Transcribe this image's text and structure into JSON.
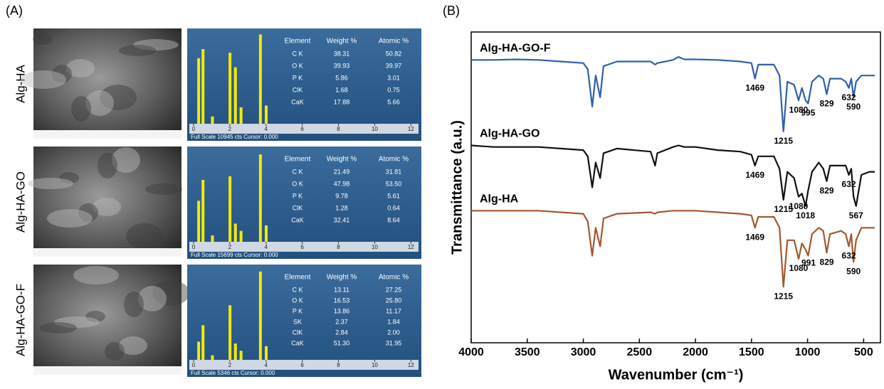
{
  "panel_labels": [
    "(A)",
    "(B)"
  ],
  "chart_data": [
    {
      "type": "bar",
      "sample": "Alg-HA",
      "x": [
        0.28,
        0.52,
        1.04,
        2.01,
        2.31,
        2.62,
        3.69,
        4.01
      ],
      "values": [
        72,
        82,
        8,
        78,
        62,
        18,
        98,
        20
      ],
      "xlim": [
        0,
        12.5
      ],
      "xticks": [
        0,
        2,
        4,
        6,
        8,
        10,
        12
      ],
      "ylim": [
        0,
        100
      ],
      "color": "#f2ea0a",
      "footer": "Full Scale 10945 cts Cursor: 0.000",
      "table": {
        "header": [
          "Element",
          "Weight %",
          "Atomic %"
        ],
        "rows": [
          [
            "C K",
            "38.31",
            "50.82"
          ],
          [
            "O K",
            "39.93",
            "39.97"
          ],
          [
            "P K",
            "5.86",
            "3.01"
          ],
          [
            "ClK",
            "1.68",
            "0.75"
          ],
          [
            "CaK",
            "17.88",
            "5.66"
          ]
        ]
      }
    },
    {
      "type": "bar",
      "sample": "Alg-HA-GO",
      "x": [
        0.28,
        0.52,
        1.04,
        2.01,
        2.31,
        2.62,
        3.69,
        4.01
      ],
      "values": [
        45,
        68,
        7,
        72,
        20,
        12,
        96,
        18
      ],
      "xlim": [
        0,
        12.5
      ],
      "xticks": [
        0,
        2,
        4,
        6,
        8,
        10,
        12
      ],
      "ylim": [
        0,
        100
      ],
      "color": "#f2ea0a",
      "footer": "Full Scale 15699 cts Cursor: 0.000",
      "table": {
        "header": [
          "Element",
          "Weight %",
          "Atomic %"
        ],
        "rows": [
          [
            "C K",
            "21.49",
            "31.81"
          ],
          [
            "O K",
            "47.98",
            "53.50"
          ],
          [
            "P K",
            "9.78",
            "5.61"
          ],
          [
            "ClK",
            "1.28",
            "0.64"
          ],
          [
            "CaK",
            "32.41",
            "8.64"
          ]
        ]
      }
    },
    {
      "type": "bar",
      "sample": "Alg-HA-GO-F",
      "x": [
        0.28,
        0.52,
        1.04,
        2.01,
        2.31,
        2.62,
        3.69,
        4.01
      ],
      "values": [
        20,
        38,
        5,
        60,
        18,
        10,
        97,
        15
      ],
      "xlim": [
        0,
        12.5
      ],
      "xticks": [
        0,
        2,
        4,
        6,
        8,
        10,
        12
      ],
      "ylim": [
        0,
        100
      ],
      "color": "#f2ea0a",
      "footer": "Full Scale 5346 cts Cursor: 0.000",
      "table": {
        "header": [
          "Element",
          "Weight %",
          "Atomic %"
        ],
        "rows": [
          [
            "C K",
            "13.11",
            "27.25"
          ],
          [
            "O K",
            "16.53",
            "25.80"
          ],
          [
            "P K",
            "13.86",
            "11.17"
          ],
          [
            "SK",
            "2.37",
            "1.84"
          ],
          [
            "ClK",
            "2.84",
            "2.00"
          ],
          [
            "CaK",
            "51.30",
            "31.95"
          ]
        ]
      }
    },
    {
      "type": "line",
      "xlabel": "Wavenumber (cm⁻¹)",
      "ylabel": "Transmittance (a.u.)",
      "xlim": [
        4000,
        350
      ],
      "ylim": [
        0,
        100
      ],
      "xticks": [
        4000,
        3500,
        3000,
        2500,
        2000,
        1500,
        1000,
        500
      ],
      "x": [
        4000,
        3800,
        3600,
        3400,
        3200,
        3000,
        2960,
        2920,
        2890,
        2850,
        2820,
        2700,
        2400,
        2360,
        2340,
        2200,
        2150,
        2100,
        2000,
        1800,
        1600,
        1500,
        1469,
        1440,
        1300,
        1250,
        1215,
        1180,
        1120,
        1080,
        1050,
        1018,
        995,
        960,
        900,
        860,
        829,
        800,
        700,
        660,
        632,
        610,
        590,
        567,
        520,
        450,
        400
      ],
      "series": [
        {
          "name": "Alg-HA-GO-F",
          "color": "#2f5fae",
          "values": [
            91,
            91,
            91.2,
            91,
            90.5,
            90,
            88,
            76,
            86,
            79,
            89,
            90.5,
            90.5,
            89.5,
            90,
            91,
            92,
            91.2,
            91.2,
            91,
            90.5,
            90,
            85,
            89.5,
            89.5,
            86,
            68,
            84,
            83,
            78,
            82,
            78,
            77,
            84,
            86,
            85,
            80,
            85,
            85,
            84,
            82,
            85,
            79,
            84,
            86,
            86,
            86
          ],
          "peaks": [
            1469,
            1215,
            1080,
            995,
            829,
            632,
            590
          ]
        },
        {
          "name": "Alg-HA-GO",
          "color": "#111111",
          "values": [
            63.5,
            63,
            63,
            63,
            62.5,
            62,
            60,
            50,
            58,
            53,
            61,
            62.5,
            61.5,
            57,
            61,
            63,
            63.5,
            63,
            63,
            62,
            61.5,
            60.5,
            57,
            60,
            60,
            56,
            46,
            55,
            53,
            47,
            48,
            44,
            49,
            55,
            58,
            56,
            52,
            57,
            57,
            57,
            54,
            56,
            47,
            44,
            54,
            55,
            55
          ],
          "peaks": [
            1469,
            1215,
            1080,
            1018,
            829,
            632,
            567
          ]
        },
        {
          "name": "Alg-HA",
          "color": "#a3582e",
          "values": [
            42.5,
            42.5,
            42.5,
            42.5,
            42,
            41.5,
            39,
            28,
            37,
            31,
            40,
            41.5,
            42,
            41.5,
            42,
            42.5,
            42.5,
            42.5,
            42.5,
            42,
            41.5,
            41,
            37,
            40.5,
            40.5,
            37,
            18,
            33,
            33,
            27,
            32,
            30,
            28,
            35,
            37,
            36,
            29,
            35,
            36,
            35,
            31,
            35,
            26,
            33,
            37,
            37,
            37
          ],
          "peaks": [
            1469,
            1215,
            1080,
            991,
            829,
            632,
            590
          ]
        }
      ]
    }
  ]
}
